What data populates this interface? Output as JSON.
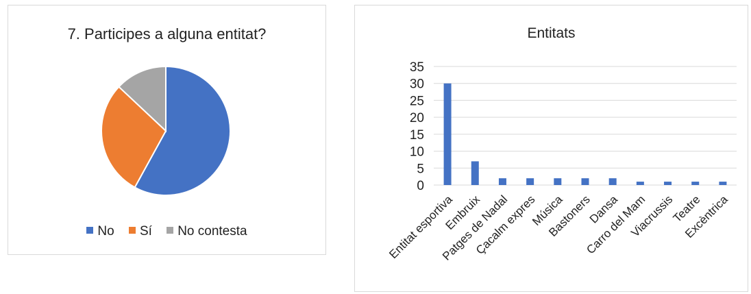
{
  "chart_data": [
    {
      "type": "pie",
      "title": "7. Participes a alguna entitat?",
      "categories": [
        "No",
        "Sí",
        "No contesta"
      ],
      "values": [
        58,
        29,
        13
      ],
      "colors": [
        "#4472c4",
        "#ed7d31",
        "#a5a5a5"
      ],
      "legend": "bottom"
    },
    {
      "type": "bar",
      "title": "Entitats",
      "categories": [
        "Entitat esportiva",
        "Embruix",
        "Patges de Nadal",
        "Çacalm expres",
        "Música",
        "Bastoners",
        "Dansa",
        "Carro del Mam",
        "Viacrussis",
        "Teatre",
        "Excèntrica"
      ],
      "values": [
        30,
        7,
        2,
        2,
        2,
        2,
        2,
        1,
        1,
        1,
        1
      ],
      "ylim": [
        0,
        35
      ],
      "yticks": [
        "0",
        "5",
        "10",
        "15",
        "20",
        "25",
        "30",
        "35"
      ],
      "grid": true,
      "color": "#4472c4"
    }
  ]
}
